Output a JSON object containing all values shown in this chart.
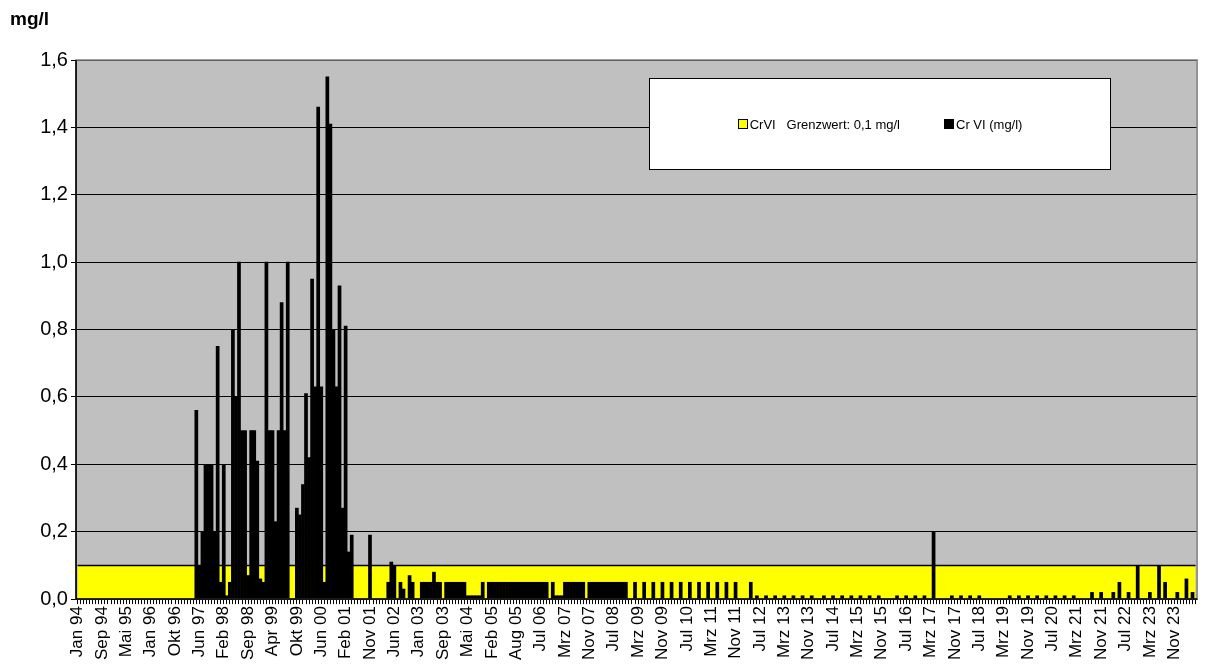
{
  "chart_data": {
    "type": "bar",
    "ylabel": "mg/l",
    "categories": [
      "Jan 94",
      null,
      null,
      null,
      null,
      null,
      null,
      null,
      "Sep 94",
      null,
      null,
      null,
      null,
      null,
      null,
      null,
      "Mai 95",
      null,
      null,
      null,
      null,
      null,
      null,
      null,
      "Jan 96",
      null,
      null,
      null,
      null,
      null,
      null,
      null,
      "Okt 96",
      null,
      null,
      null,
      null,
      null,
      null,
      null,
      "Jun 97",
      null,
      null,
      null,
      null,
      null,
      null,
      null,
      "Feb 98",
      null,
      null,
      null,
      null,
      null,
      null,
      null,
      "Sep 98",
      null,
      null,
      null,
      null,
      null,
      null,
      null,
      "Apr 99",
      null,
      null,
      null,
      null,
      null,
      null,
      null,
      "Okt 99",
      null,
      null,
      null,
      null,
      null,
      null,
      null,
      "Jun 00",
      null,
      null,
      null,
      null,
      null,
      null,
      null,
      "Feb 01",
      null,
      null,
      null,
      null,
      null,
      null,
      null,
      "Nov 01",
      null,
      null,
      null,
      null,
      null,
      null,
      null,
      "Jun 02",
      null,
      null,
      null,
      null,
      null,
      null,
      null,
      "Jan 03",
      null,
      null,
      null,
      null,
      null,
      null,
      null,
      "Sep 03",
      null,
      null,
      null,
      null,
      null,
      null,
      null,
      "Mai 04",
      null,
      null,
      null,
      null,
      null,
      null,
      null,
      "Feb 05",
      null,
      null,
      null,
      null,
      null,
      null,
      null,
      "Aug 05",
      null,
      null,
      null,
      null,
      null,
      null,
      null,
      "Jul 06",
      null,
      null,
      null,
      null,
      null,
      null,
      null,
      "Mrz 07",
      null,
      null,
      null,
      null,
      null,
      null,
      null,
      "Nov 07",
      null,
      null,
      null,
      null,
      null,
      null,
      null,
      "Jul 08",
      null,
      null,
      null,
      null,
      null,
      null,
      null,
      "Mrz 09",
      null,
      null,
      null,
      null,
      null,
      null,
      null,
      "Nov 09",
      null,
      null,
      null,
      null,
      null,
      null,
      null,
      "Jul 10",
      null,
      null,
      null,
      null,
      null,
      null,
      null,
      "Mrz 11",
      null,
      null,
      null,
      null,
      null,
      null,
      null,
      "Nov 11",
      null,
      null,
      null,
      null,
      null,
      null,
      null,
      "Jul 12",
      null,
      null,
      null,
      null,
      null,
      null,
      null,
      "Mrz 13",
      null,
      null,
      null,
      null,
      null,
      null,
      null,
      "Nov 13",
      null,
      null,
      null,
      null,
      null,
      null,
      null,
      "Jul 14",
      null,
      null,
      null,
      null,
      null,
      null,
      null,
      "Mrz 15",
      null,
      null,
      null,
      null,
      null,
      null,
      null,
      "Nov 15",
      null,
      null,
      null,
      null,
      null,
      null,
      null,
      "Jul 16",
      null,
      null,
      null,
      null,
      null,
      null,
      null,
      "Mrz 17",
      null,
      null,
      null,
      null,
      null,
      null,
      null,
      "Nov 17",
      null,
      null,
      null,
      null,
      null,
      null,
      null,
      "Jul 18",
      null,
      null,
      null,
      null,
      null,
      null,
      null,
      "Mrz 19",
      null,
      null,
      null,
      null,
      null,
      null,
      null,
      "Nov 19",
      null,
      null,
      null,
      null,
      null,
      null,
      null,
      "Jul 20",
      null,
      null,
      null,
      null,
      null,
      null,
      null,
      "Mrz 21",
      null,
      null,
      null,
      null,
      null,
      null,
      null,
      "Nov 21",
      null,
      null,
      null,
      null,
      null,
      null,
      null,
      "Jul 22",
      null,
      null,
      null,
      null,
      null,
      null,
      null,
      "Mrz 23",
      null,
      null,
      null,
      null,
      null,
      null,
      null,
      "Nov 23",
      null,
      null,
      null,
      null,
      null,
      null,
      null
    ],
    "series": [
      {
        "name": "CrVI   Grenzwert: 0,1 mg/l",
        "type": "area",
        "color": "#ffff00",
        "values": [
          0.1,
          0.1,
          0.1,
          0.1,
          0.1,
          0.1,
          0.1,
          0.1,
          0.1,
          0.1,
          0.1,
          0.1,
          0.1,
          0.1,
          0.1,
          0.1,
          0.1,
          0.1,
          0.1,
          0.1,
          0.1,
          0.1,
          0.1,
          0.1,
          0.1,
          0.1,
          0.1,
          0.1,
          0.1,
          0.1,
          0.1,
          0.1,
          0.1,
          0.1,
          0.1,
          0.1,
          0.1,
          0.1,
          0.1,
          0.1,
          0.1,
          0.1,
          0.1,
          0.1,
          0.1,
          0.1,
          0.1,
          0.1,
          0.1,
          0.1,
          0.1,
          0.1,
          0.1,
          0.1,
          0.1,
          0.1,
          0.1,
          0.1,
          0.1,
          0.1,
          0.1,
          0.1,
          0.1,
          0.1,
          0.1,
          0.1,
          0.1,
          0.1,
          0.1,
          0.1,
          0.1,
          0.1,
          0.1,
          0.1,
          0.1,
          0.1,
          0.1,
          0.1,
          0.1,
          0.1,
          0.1,
          0.1,
          0.1,
          0.1,
          0.1,
          0.1,
          0.1,
          0.1,
          0.1,
          0.1,
          0.1,
          0.1,
          0.1,
          0.1,
          0.1,
          0.1,
          0.1,
          0.1,
          0.1,
          0.1,
          0.1,
          0.1,
          0.1,
          0.1,
          0.1,
          0.1,
          0.1,
          0.1,
          0.1,
          0.1,
          0.1,
          0.1,
          0.1,
          0.1,
          0.1,
          0.1,
          0.1,
          0.1,
          0.1,
          0.1,
          0.1,
          0.1,
          0.1,
          0.1,
          0.1,
          0.1,
          0.1,
          0.1,
          0.1,
          0.1,
          0.1,
          0.1,
          0.1,
          0.1,
          0.1,
          0.1,
          0.1,
          0.1,
          0.1,
          0.1,
          0.1,
          0.1,
          0.1,
          0.1,
          0.1,
          0.1,
          0.1,
          0.1,
          0.1,
          0.1,
          0.1,
          0.1,
          0.1,
          0.1,
          0.1,
          0.1,
          0.1,
          0.1,
          0.1,
          0.1,
          0.1,
          0.1,
          0.1,
          0.1,
          0.1,
          0.1,
          0.1,
          0.1,
          0.1,
          0.1,
          0.1,
          0.1,
          0.1,
          0.1,
          0.1,
          0.1,
          0.1,
          0.1,
          0.1,
          0.1,
          0.1,
          0.1,
          0.1,
          0.1,
          0.1,
          0.1,
          0.1,
          0.1,
          0.1,
          0.1,
          0.1,
          0.1,
          0.1,
          0.1,
          0.1,
          0.1,
          0.1,
          0.1,
          0.1,
          0.1,
          0.1,
          0.1,
          0.1,
          0.1,
          0.1,
          0.1,
          0.1,
          0.1,
          0.1,
          0.1,
          0.1,
          0.1,
          0.1,
          0.1,
          0.1,
          0.1,
          0.1,
          0.1,
          0.1,
          0.1,
          0.1,
          0.1,
          0.1,
          0.1,
          0.1,
          0.1,
          0.1,
          0.1,
          0.1,
          0.1,
          0.1,
          0.1,
          0.1,
          0.1,
          0.1,
          0.1,
          0.1,
          0.1,
          0.1,
          0.1,
          0.1,
          0.1,
          0.1,
          0.1,
          0.1,
          0.1,
          0.1,
          0.1,
          0.1,
          0.1,
          0.1,
          0.1,
          0.1,
          0.1,
          0.1,
          0.1,
          0.1,
          0.1,
          0.1,
          0.1,
          0.1,
          0.1,
          0.1,
          0.1,
          0.1,
          0.1,
          0.1,
          0.1,
          0.1,
          0.1,
          0.1,
          0.1,
          0.1,
          0.1,
          0.1,
          0.1,
          0.1,
          0.1,
          0.1,
          0.1,
          0.1,
          0.1,
          0.1,
          0.1,
          0.1,
          0.1,
          0.1,
          0.1,
          0.1,
          0.1,
          0.1,
          0.1,
          0.1,
          0.1,
          0.1,
          0.1,
          0.1,
          0.1,
          0.1,
          0.1,
          0.1,
          0.1,
          0.1,
          0.1,
          0.1,
          0.1,
          0.1,
          0.1,
          0.1,
          0.1,
          0.1,
          0.1,
          0.1,
          0.1,
          0.1,
          0.1,
          0.1,
          0.1,
          0.1,
          0.1,
          0.1,
          0.1,
          0.1,
          0.1,
          0.1,
          0.1,
          0.1,
          0.1,
          0.1,
          0.1,
          0.1,
          0.1,
          0.1,
          0.1,
          0.1,
          0.1,
          0.1,
          0.1,
          0.1,
          0.1,
          0.1,
          0.1,
          0.1,
          0.1,
          0.1,
          0.1,
          0.1,
          0.1,
          0.1,
          0.1,
          0.1,
          0.1,
          0.1,
          0.1,
          0.1,
          0.1,
          0.1,
          0.1,
          0.1,
          0.1,
          0.1,
          0.1,
          0.1,
          0.1,
          0.1,
          0.1,
          0.1,
          0.1
        ]
      },
      {
        "name": "Cr VI (mg/l)",
        "color": "#000000",
        "values": [
          null,
          null,
          null,
          null,
          null,
          null,
          null,
          null,
          null,
          null,
          null,
          null,
          null,
          null,
          null,
          null,
          null,
          null,
          null,
          null,
          null,
          null,
          null,
          null,
          null,
          null,
          null,
          null,
          null,
          null,
          null,
          null,
          null,
          null,
          null,
          null,
          null,
          null,
          null,
          0.56,
          0.1,
          0.2,
          0.4,
          0.4,
          0.4,
          0.2,
          0.75,
          0.05,
          0.4,
          0.01,
          0.05,
          0.8,
          0.6,
          1.0,
          0.5,
          0.5,
          0.07,
          0.5,
          0.5,
          0.41,
          0.06,
          0.05,
          1.0,
          0.5,
          0.5,
          0.23,
          0.5,
          0.88,
          0.5,
          1.0,
          null,
          null,
          0.27,
          0.25,
          0.34,
          0.61,
          0.42,
          0.95,
          0.63,
          1.46,
          0.63,
          0.05,
          1.55,
          1.41,
          0.8,
          0.63,
          0.93,
          0.27,
          0.81,
          0.14,
          0.19,
          null,
          null,
          null,
          null,
          null,
          0.19,
          null,
          null,
          null,
          null,
          null,
          0.05,
          0.11,
          0.1,
          null,
          0.05,
          0.03,
          null,
          0.07,
          0.05,
          null,
          null,
          0.05,
          0.05,
          0.05,
          0.05,
          0.08,
          0.05,
          0.05,
          null,
          0.05,
          0.05,
          0.05,
          0.05,
          0.05,
          0.05,
          0.05,
          0.01,
          0.01,
          0.01,
          0.01,
          0.01,
          0.05,
          null,
          0.05,
          0.05,
          0.05,
          0.05,
          0.05,
          0.05,
          0.05,
          0.05,
          0.05,
          0.05,
          0.05,
          0.05,
          0.05,
          0.05,
          0.05,
          0.05,
          0.05,
          0.05,
          0.05,
          0.05,
          null,
          0.05,
          0.01,
          0.01,
          0.01,
          0.05,
          0.05,
          0.05,
          0.05,
          0.05,
          0.05,
          0.05,
          null,
          0.05,
          0.05,
          0.05,
          0.05,
          0.05,
          0.05,
          0.05,
          0.05,
          0.05,
          0.05,
          0.05,
          0.05,
          0.05,
          null,
          null,
          0.05,
          null,
          null,
          0.05,
          null,
          null,
          0.05,
          null,
          null,
          0.05,
          null,
          null,
          0.05,
          null,
          null,
          0.05,
          null,
          null,
          0.05,
          null,
          null,
          0.05,
          null,
          null,
          0.05,
          null,
          null,
          0.05,
          null,
          null,
          0.05,
          null,
          null,
          0.05,
          null,
          null,
          null,
          null,
          0.05,
          null,
          0.01,
          null,
          null,
          0.01,
          null,
          null,
          0.01,
          null,
          null,
          0.01,
          null,
          null,
          0.01,
          null,
          null,
          0.01,
          null,
          null,
          0.01,
          null,
          null,
          null,
          0.01,
          null,
          null,
          0.01,
          null,
          null,
          0.01,
          null,
          null,
          0.01,
          null,
          null,
          0.01,
          null,
          null,
          0.01,
          null,
          null,
          0.01,
          null,
          null,
          null,
          null,
          null,
          0.01,
          null,
          null,
          0.01,
          null,
          null,
          0.01,
          null,
          null,
          0.01,
          null,
          null,
          0.2,
          null,
          null,
          null,
          null,
          null,
          0.01,
          null,
          null,
          0.01,
          null,
          null,
          0.01,
          null,
          null,
          0.01,
          null,
          null,
          null,
          null,
          null,
          null,
          null,
          null,
          null,
          0.01,
          null,
          null,
          0.01,
          null,
          null,
          0.01,
          null,
          null,
          0.01,
          null,
          null,
          0.01,
          null,
          null,
          0.01,
          null,
          null,
          0.01,
          null,
          null,
          0.01,
          null,
          null,
          null,
          null,
          null,
          0.02,
          null,
          null,
          0.02,
          null,
          null,
          null,
          0.02,
          null,
          0.05,
          null,
          null,
          0.02,
          null,
          null,
          0.1,
          null,
          null,
          null,
          0.02,
          null,
          null,
          0.1,
          null,
          0.05,
          null,
          null,
          null,
          0.02,
          null,
          null,
          0.06,
          null,
          0.02,
          null
        ]
      }
    ],
    "ylim": [
      0,
      1.6
    ],
    "yticks": [
      {
        "value": 0,
        "label": "0,0"
      },
      {
        "value": 0.2,
        "label": "0,2"
      },
      {
        "value": 0.4,
        "label": "0,4"
      },
      {
        "value": 0.6,
        "label": "0,6"
      },
      {
        "value": 0.8,
        "label": "0,8"
      },
      {
        "value": 1.0,
        "label": "1,0"
      },
      {
        "value": 1.2,
        "label": "1,2"
      },
      {
        "value": 1.4,
        "label": "1,4"
      },
      {
        "value": 1.6,
        "label": "1,6"
      }
    ],
    "grid": "y",
    "legend": "top right"
  }
}
